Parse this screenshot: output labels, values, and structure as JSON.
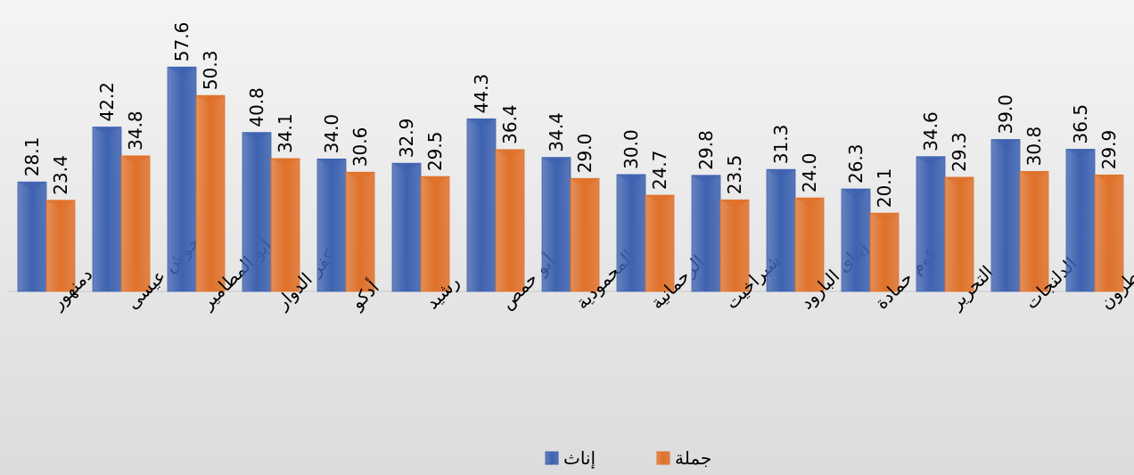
{
  "chart_data": {
    "type": "bar",
    "categories": [
      "دمنهور",
      "حوش عيسى",
      "أبو المطامير",
      "كفر الدوار",
      "أدكو",
      "رشيد",
      "أبو حمص",
      "المحمودية",
      "الرحمانية",
      "شبراخيت",
      "إيتاى البارود",
      "كوم حمادة",
      "التحرير",
      "الدلنجات",
      "وادى النطرون"
    ],
    "series": [
      {
        "name": "إناث",
        "color": "#3d62b0",
        "values": [
          28.1,
          42.2,
          57.6,
          40.8,
          34.0,
          32.9,
          44.3,
          34.4,
          30.0,
          29.8,
          31.3,
          26.3,
          34.6,
          39.0,
          36.5
        ],
        "value_labels": [
          "28.1",
          "42.2",
          "57.6",
          "40.8",
          "34.0",
          "32.9",
          "44.3",
          "34.4",
          "30.0",
          "29.8",
          "31.3",
          "26.3",
          "34.6",
          "39.0",
          "36.5"
        ]
      },
      {
        "name": "جملة",
        "color": "#e0712a",
        "values": [
          23.4,
          34.8,
          50.3,
          34.1,
          30.6,
          29.5,
          36.4,
          29.0,
          24.7,
          23.5,
          24.0,
          20.1,
          29.3,
          30.8,
          29.9
        ],
        "value_labels": [
          "23.4",
          "34.8",
          "50.3",
          "34.1",
          "30.6",
          "29.5",
          "36.4",
          "29.0",
          "24.7",
          "23.5",
          "24.0",
          "20.1",
          "29.3",
          "30.8",
          "29.9"
        ]
      }
    ],
    "ylim": [
      0,
      70
    ]
  }
}
